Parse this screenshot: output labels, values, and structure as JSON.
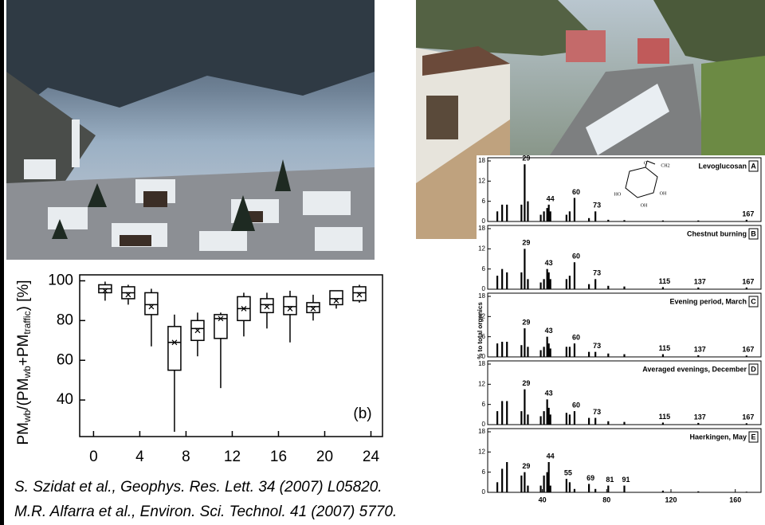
{
  "chart_data": [
    {
      "type": "box",
      "ylabel": [
        "PM",
        "wb",
        "/(PM",
        "wb",
        "+PM",
        "traffic",
        ") [%]"
      ],
      "annotation": "(b)",
      "x": [
        1,
        3,
        5,
        7,
        9,
        11,
        13,
        15,
        17,
        19,
        21,
        23
      ],
      "min": [
        90,
        88,
        67,
        24,
        62,
        46,
        72,
        76,
        69,
        80,
        86,
        89
      ],
      "q1": [
        94,
        91,
        83,
        55,
        70,
        71,
        80,
        84,
        83,
        84,
        88,
        90
      ],
      "median": [
        96,
        94,
        88,
        69,
        76,
        81,
        86,
        88,
        87,
        87,
        91,
        94
      ],
      "mean": [
        95,
        93,
        87,
        69,
        75,
        81,
        86,
        87,
        86,
        86,
        90,
        93
      ],
      "q3": [
        98,
        97,
        94,
        77,
        80,
        83,
        92,
        91,
        92,
        89,
        95,
        97
      ],
      "max": [
        99.6,
        98,
        96,
        83,
        84,
        84,
        94,
        94,
        95,
        93,
        95,
        98
      ],
      "xlim": [
        -1.2,
        25
      ],
      "xticks": [
        0,
        4,
        8,
        12,
        16,
        20,
        24
      ],
      "ylim": [
        21.6,
        103
      ],
      "yticks": [
        40,
        60,
        80,
        100
      ]
    },
    {
      "type": "bar",
      "ylabel": "% to total organics",
      "x": [
        12,
        15,
        18,
        27,
        29,
        31,
        39,
        41,
        43,
        44,
        45,
        55,
        57,
        60,
        69,
        73,
        81,
        91,
        115,
        137,
        167
      ],
      "panels": [
        {
          "title": "Levoglucosan",
          "letter": "A",
          "values": [
            3,
            5,
            5,
            5,
            17,
            6,
            2,
            3,
            4,
            5,
            3,
            2,
            3,
            7,
            1,
            3,
            0.5,
            0.4,
            0.3,
            0.3,
            0.5
          ],
          "annotations": [
            29,
            44,
            60,
            73,
            167
          ]
        },
        {
          "title": "Chestnut burning",
          "letter": "B",
          "values": [
            4,
            6,
            5,
            5,
            12,
            3,
            2,
            3,
            6,
            5,
            3,
            3,
            4,
            8,
            1.5,
            3,
            1,
            0.8,
            0.6,
            0.5,
            0.5
          ],
          "annotations": [
            29,
            43,
            60,
            73,
            115,
            137,
            167
          ]
        },
        {
          "title": "Evening period, March",
          "letter": "C",
          "values": [
            4,
            4.5,
            4.5,
            3.5,
            8.5,
            3,
            2,
            3,
            6,
            4,
            2.5,
            3,
            3,
            4,
            1.5,
            1.5,
            1,
            0.8,
            0.8,
            0.5,
            0.4
          ],
          "annotations": [
            29,
            43,
            60,
            73,
            115,
            137,
            167
          ]
        },
        {
          "title": "Averaged evenings, December",
          "letter": "D",
          "values": [
            4,
            7,
            7,
            4,
            10.5,
            3,
            2.5,
            4,
            7.5,
            5,
            3,
            3.5,
            3,
            4,
            2,
            2,
            1,
            0.8,
            0.6,
            0.5,
            0.4
          ],
          "annotations": [
            29,
            43,
            60,
            73,
            115,
            137,
            167
          ]
        },
        {
          "title": "Haerkingen, May",
          "letter": "E",
          "values": [
            3,
            7,
            9,
            5,
            6,
            2,
            2,
            5,
            6,
            9,
            2,
            4,
            3,
            1,
            2.5,
            1,
            2,
            2,
            0.5,
            0.3,
            0.2
          ],
          "annotations": [
            29,
            44,
            55,
            69,
            81,
            91
          ]
        }
      ],
      "ylim": [
        0,
        18
      ],
      "yticks": [
        0,
        6,
        12,
        18
      ],
      "xlim": [
        6,
        176
      ],
      "xticks": [
        40,
        80,
        120,
        160
      ],
      "structure_labels": [
        "O",
        "CH2",
        "HO",
        "OH",
        "OH"
      ]
    }
  ],
  "citations": [
    "S. Szidat et al., Geophys. Res. Lett. 34 (2007) L05820.",
    "M.R. Alfarra et al., Environ. Sci. Technol. 41 (2007) 5770."
  ]
}
